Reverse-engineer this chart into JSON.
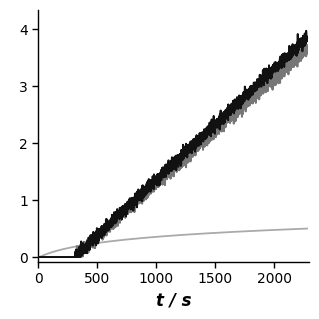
{
  "xlabel": "t / s",
  "xlim": [
    0,
    2300
  ],
  "ylim": [
    -0.08,
    4.35
  ],
  "yticks": [
    0,
    1,
    2,
    3,
    4
  ],
  "xticks": [
    0,
    500,
    1000,
    1500,
    2000
  ],
  "line1_color": "#111111",
  "line2_color": "#777777",
  "line3_color": "#aaaaaa",
  "bg_color": "#ffffff",
  "noise_amplitude1": 0.055,
  "noise_amplitude2": 0.055,
  "seed": 42,
  "t_start": 310,
  "t_end": 2260,
  "line1_end": 3.82,
  "line2_end": 3.62,
  "line3_end": 0.5
}
